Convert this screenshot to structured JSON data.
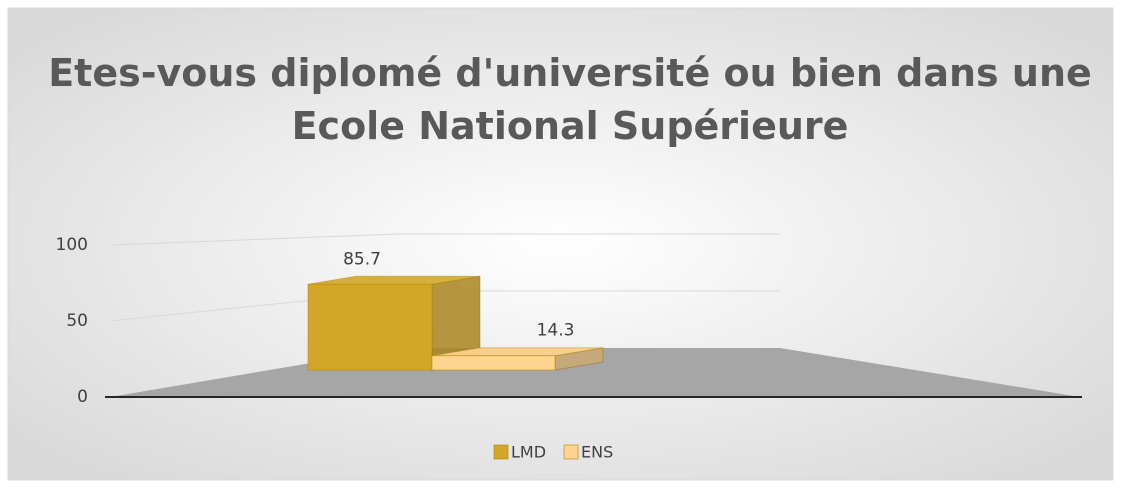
{
  "chart_data": {
    "type": "bar3d",
    "title": "Etes-vous diplomé d'université ou bien dans une Ecole National Supérieure",
    "categories": [
      null
    ],
    "series": [
      {
        "name": "LMD",
        "color": "#d2a728",
        "values": [
          85.7
        ]
      },
      {
        "name": "ENS",
        "color": "#ffd48f",
        "values": [
          14.3
        ]
      }
    ],
    "ylim": [
      0,
      100
    ],
    "yticks": [
      0,
      50,
      100
    ],
    "grid": true,
    "legend": "bottom"
  }
}
